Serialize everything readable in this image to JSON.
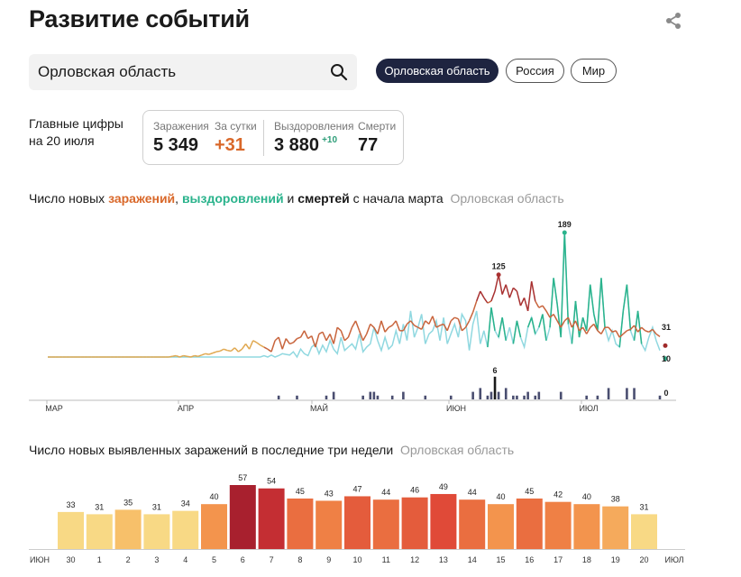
{
  "page": {
    "title": "Развитие событий",
    "share_icon": "share-icon"
  },
  "search": {
    "value": "Орловская область",
    "icon": "search-icon"
  },
  "region_chips": [
    {
      "label": "Орловская область",
      "active": true
    },
    {
      "label": "Россия",
      "active": false
    },
    {
      "label": "Мир",
      "active": false
    }
  ],
  "main_figures": {
    "label_line1": "Главные цифры",
    "label_line2": "на 20 июля",
    "infections_label": "Заражения",
    "infections_value": "5 349",
    "daily_label": "За сутки",
    "daily_value": "+31",
    "recovered_label": "Выздоровления",
    "recovered_value": "3 880",
    "recovered_delta": "+10",
    "deaths_label": "Смерти",
    "deaths_value": "77"
  },
  "chart1_heading": {
    "prefix": "Число новых ",
    "infections": "заражений",
    "comma": ", ",
    "recoveries": "выздоровлений",
    "and": " и ",
    "deaths": "смертей",
    "suffix": " с начала марта",
    "region": "Орловская область"
  },
  "chart2_heading": {
    "text": "Число новых выявленных заражений в последние три недели",
    "region": "Орловская область"
  },
  "colors": {
    "infections_early": "#e0a850",
    "infections": "#c8643c",
    "infections_peak": "#a83030",
    "recoveries": "#90d8e0",
    "recoveries_peak": "#2ab38c",
    "deaths": "#4a4e70",
    "deaths_peak": "#1a1a1a",
    "end_dot_infections": "#a02a2a",
    "end_dot_recoveries": "#2ab38c"
  },
  "chart_data": [
    {
      "type": "line",
      "title": "Число новых заражений, выздоровлений и смертей с начала марта",
      "x_tick_labels": [
        "МАР",
        "АПР",
        "МАЙ",
        "ИЮН",
        "ИЮЛ"
      ],
      "series": [
        {
          "name": "заражений",
          "values": [
            0,
            0,
            0,
            0,
            0,
            0,
            0,
            0,
            0,
            0,
            0,
            0,
            0,
            0,
            0,
            0,
            0,
            0,
            0,
            0,
            0,
            0,
            0,
            0,
            0,
            0,
            0,
            0,
            0,
            0,
            0,
            0,
            0,
            0,
            1,
            2,
            0,
            2,
            1,
            0,
            2,
            1,
            3,
            5,
            4,
            6,
            8,
            9,
            12,
            10,
            9,
            14,
            8,
            12,
            20,
            12,
            25,
            22,
            18,
            15,
            12,
            8,
            25,
            30,
            12,
            28,
            20,
            22,
            28,
            30,
            40,
            28,
            32,
            15,
            35,
            38,
            25,
            35,
            20,
            45,
            40,
            25,
            30,
            45,
            55,
            40,
            25,
            35,
            50,
            45,
            35,
            55,
            38,
            45,
            48,
            55,
            40,
            40,
            50,
            55,
            48,
            45,
            42,
            55,
            50,
            62,
            45,
            48,
            50,
            40,
            55,
            60,
            58,
            40,
            45,
            55,
            68,
            85,
            100,
            90,
            82,
            85,
            100,
            125,
            95,
            110,
            90,
            105,
            100,
            78,
            90,
            70,
            115,
            85,
            75,
            78,
            70,
            60,
            65,
            55,
            45,
            55,
            60,
            45,
            55,
            40,
            45,
            35,
            45,
            50,
            40,
            35,
            45,
            45,
            38,
            40,
            30,
            35,
            40,
            42,
            48,
            38,
            45,
            40,
            38,
            42,
            35,
            31
          ]
        },
        {
          "name": "выздоровлений",
          "values": [
            0,
            0,
            0,
            0,
            0,
            0,
            0,
            0,
            0,
            0,
            0,
            0,
            0,
            0,
            0,
            0,
            0,
            0,
            0,
            0,
            0,
            0,
            0,
            0,
            0,
            0,
            0,
            0,
            0,
            0,
            0,
            0,
            0,
            0,
            0,
            0,
            0,
            0,
            0,
            0,
            0,
            0,
            0,
            0,
            0,
            0,
            0,
            0,
            0,
            0,
            0,
            0,
            0,
            0,
            0,
            0,
            0,
            0,
            0,
            2,
            0,
            3,
            0,
            2,
            5,
            4,
            3,
            8,
            0,
            12,
            5,
            2,
            15,
            20,
            5,
            18,
            8,
            25,
            12,
            5,
            30,
            10,
            15,
            20,
            12,
            35,
            8,
            15,
            20,
            45,
            25,
            10,
            30,
            12,
            18,
            40,
            20,
            50,
            25,
            70,
            30,
            45,
            65,
            20,
            35,
            40,
            55,
            25,
            60,
            20,
            35,
            50,
            30,
            65,
            55,
            10,
            50,
            70,
            20,
            40,
            15,
            75,
            40,
            30,
            60,
            25,
            45,
            20,
            55,
            30,
            15,
            45,
            60,
            35,
            45,
            65,
            25,
            45,
            120,
            80,
            30,
            189,
            50,
            20,
            85,
            30,
            60,
            40,
            110,
            65,
            40,
            120,
            45,
            25,
            40,
            20,
            15,
            70,
            110,
            40,
            25,
            70,
            20,
            10,
            30,
            45,
            25,
            10
          ]
        },
        {
          "name": "смертей",
          "values": [
            0,
            0,
            0,
            0,
            0,
            0,
            0,
            0,
            0,
            0,
            0,
            0,
            0,
            0,
            0,
            0,
            0,
            0,
            0,
            0,
            0,
            0,
            0,
            0,
            0,
            0,
            0,
            0,
            0,
            0,
            0,
            0,
            0,
            0,
            0,
            0,
            0,
            0,
            0,
            0,
            0,
            0,
            0,
            0,
            0,
            0,
            0,
            0,
            0,
            0,
            0,
            0,
            0,
            0,
            0,
            0,
            0,
            0,
            0,
            0,
            0,
            0,
            0,
            1,
            0,
            0,
            0,
            0,
            1,
            0,
            0,
            0,
            0,
            0,
            0,
            0,
            1,
            0,
            2,
            0,
            0,
            0,
            0,
            0,
            0,
            0,
            1,
            0,
            2,
            2,
            1,
            0,
            0,
            0,
            1,
            0,
            0,
            2,
            0,
            0,
            0,
            0,
            0,
            1,
            0,
            0,
            0,
            0,
            0,
            0,
            1,
            0,
            0,
            0,
            0,
            0,
            2,
            0,
            3,
            0,
            1,
            2,
            6,
            2,
            0,
            3,
            0,
            1,
            1,
            0,
            1,
            2,
            0,
            1,
            2,
            0,
            0,
            0,
            0,
            0,
            2,
            0,
            0,
            0,
            0,
            0,
            0,
            1,
            0,
            0,
            1,
            0,
            0,
            3,
            0,
            0,
            0,
            0,
            3,
            0,
            3,
            0,
            0,
            0,
            0,
            0,
            0,
            1,
            0,
            0
          ]
        }
      ],
      "annotations": [
        "125",
        "189",
        "6",
        "31",
        "10",
        "0"
      ]
    },
    {
      "type": "bar",
      "title": "Число новых выявленных заражений в последние три недели",
      "month_labels": [
        "ИЮН",
        "ИЮЛ"
      ],
      "categories": [
        "30",
        "1",
        "2",
        "3",
        "4",
        "5",
        "6",
        "7",
        "8",
        "9",
        "10",
        "11",
        "12",
        "13",
        "14",
        "15",
        "16",
        "17",
        "18",
        "19",
        "20"
      ],
      "values": [
        33,
        31,
        35,
        31,
        34,
        40,
        57,
        54,
        45,
        43,
        47,
        44,
        46,
        49,
        44,
        40,
        45,
        42,
        40,
        38,
        31
      ],
      "weekend": [
        false,
        false,
        false,
        false,
        true,
        true,
        false,
        false,
        false,
        false,
        false,
        true,
        true,
        false,
        false,
        false,
        false,
        false,
        true,
        true,
        false
      ]
    }
  ]
}
